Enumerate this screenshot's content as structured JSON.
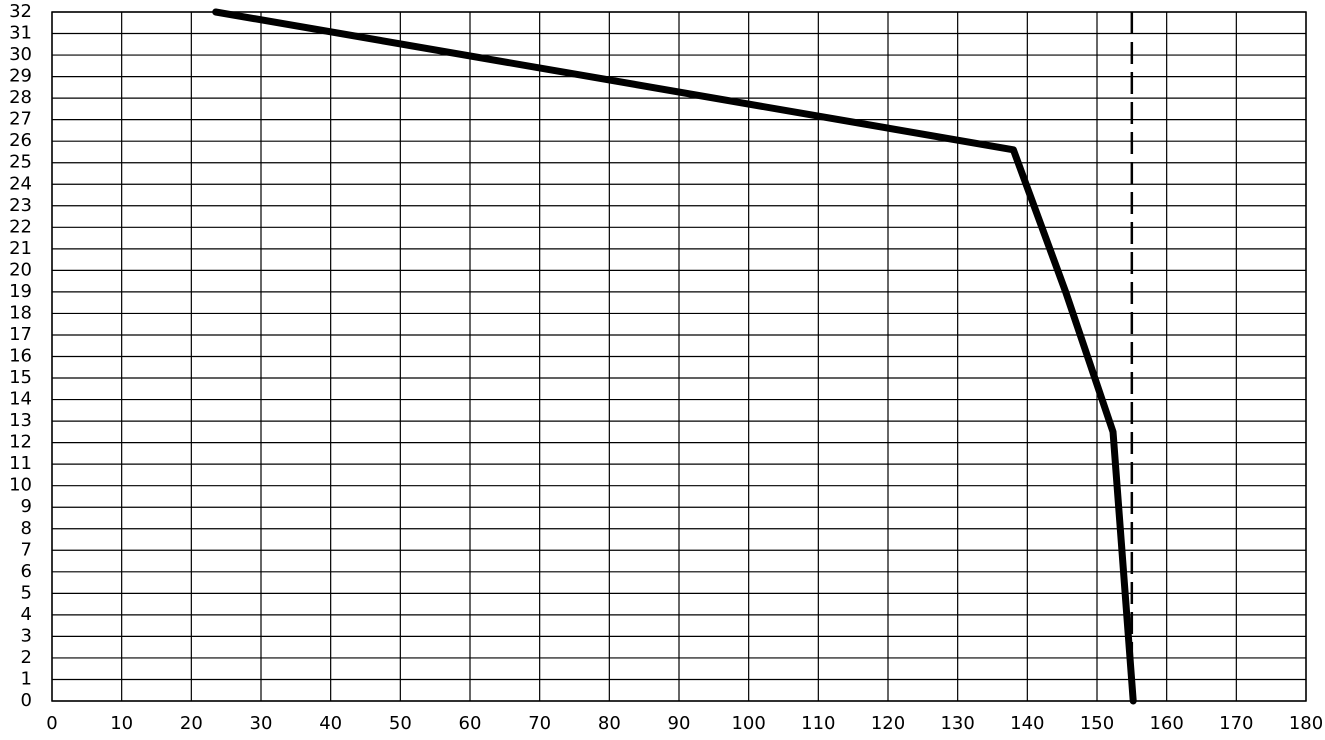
{
  "chart_data": {
    "type": "line",
    "x": [
      23.5,
      138,
      145.5,
      152.3,
      155.2
    ],
    "series": [
      {
        "color": "#000000",
        "values": [
          32,
          25.6,
          19,
          12.5,
          0
        ]
      }
    ],
    "xlim": [
      0,
      180
    ],
    "ylim": [
      0,
      32
    ],
    "xticks": [
      0,
      10,
      20,
      30,
      40,
      50,
      60,
      70,
      80,
      90,
      100,
      110,
      120,
      130,
      140,
      150,
      160,
      170,
      180
    ],
    "yticks": [
      0,
      1,
      2,
      3,
      4,
      5,
      6,
      7,
      8,
      9,
      10,
      11,
      12,
      13,
      14,
      15,
      16,
      17,
      18,
      19,
      20,
      21,
      22,
      23,
      24,
      25,
      26,
      27,
      28,
      29,
      30,
      31,
      32
    ],
    "vline_x": 155,
    "vline_color": "#000000",
    "grid": true
  }
}
